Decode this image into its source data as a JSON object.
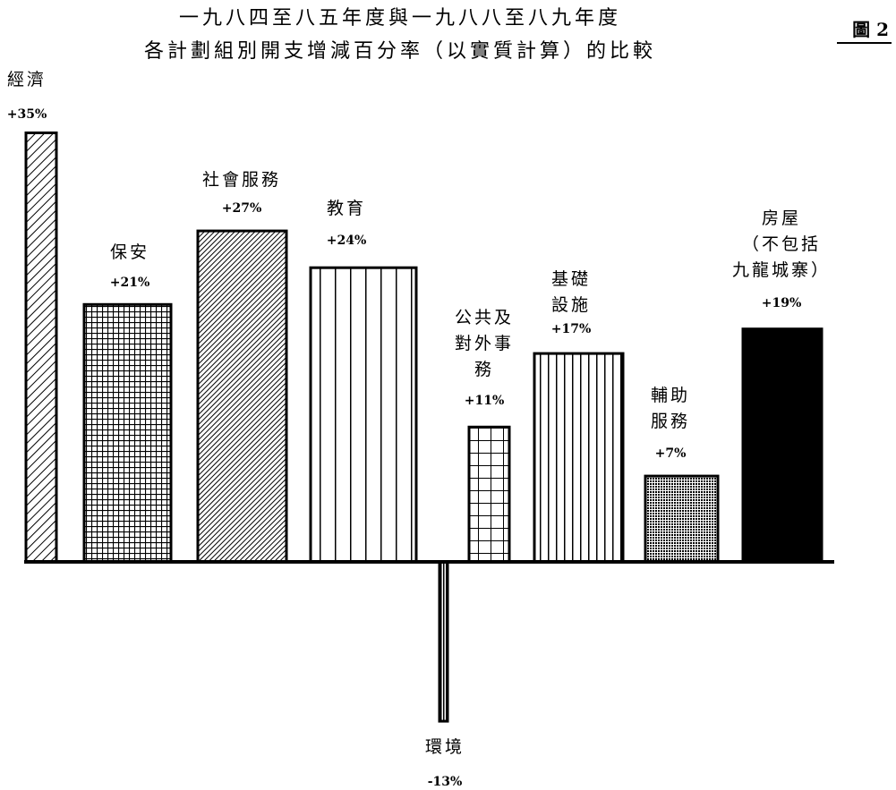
{
  "figure_label": "圖 2",
  "chart_data": {
    "type": "bar",
    "title": [
      "一九八四至八五年度與一九八八至八九年度",
      "各計劃組別開支增減百分率（以實質計算）的比較"
    ],
    "xlabel": "",
    "ylabel": "",
    "ylim": [
      -20,
      40
    ],
    "grid": false,
    "legend": "none",
    "categories": [
      {
        "label": [
          "經濟"
        ],
        "value": 35,
        "value_label": "+35%",
        "pattern": "diag-sparse"
      },
      {
        "label": [
          "保安"
        ],
        "value": 21,
        "value_label": "+21%",
        "pattern": "grid-fine"
      },
      {
        "label": [
          "社會服務"
        ],
        "value": 27,
        "value_label": "+27%",
        "pattern": "diag-dense"
      },
      {
        "label": [
          "教育"
        ],
        "value": 24,
        "value_label": "+24%",
        "pattern": "vert-wide"
      },
      {
        "label": [
          "環境"
        ],
        "value": -13,
        "value_label": "-13%",
        "pattern": "vert-narrow"
      },
      {
        "label": [
          "公共及",
          "對外事",
          "務"
        ],
        "value": 11,
        "value_label": "+11%",
        "pattern": "grid-coarse"
      },
      {
        "label": [
          "基礎",
          "設施"
        ],
        "value": 17,
        "value_label": "+17%",
        "pattern": "vert-medium"
      },
      {
        "label": [
          "輔助",
          "服務"
        ],
        "value": 7,
        "value_label": "+7%",
        "pattern": "dots"
      },
      {
        "label": [
          "房屋",
          "（不包括",
          "九龍城寨）"
        ],
        "value": 19,
        "value_label": "+19%",
        "pattern": "solid"
      }
    ]
  }
}
